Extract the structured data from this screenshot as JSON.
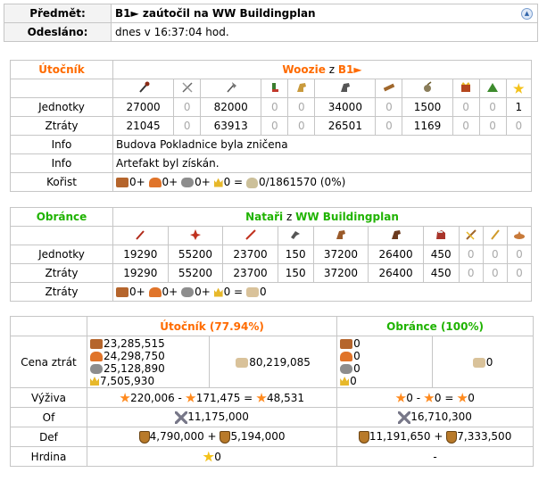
{
  "header": {
    "subject_label": "Předmět:",
    "subject_value": "B1► zaútočil na WW Buildingplan",
    "sent_label": "Odesláno:",
    "sent_value": "dnes v 16:37:04 hod."
  },
  "attacker": {
    "role": "Útočník",
    "player": "Woozie",
    "from_word": "z",
    "village": "B1►",
    "unit_icons": [
      "clubswinger-icon",
      "spearman-icon",
      "axeman-icon",
      "scout-icon",
      "paladin-icon",
      "teutonic-knight-icon",
      "ram-icon",
      "catapult-icon",
      "chief-icon",
      "settler-icon",
      "hero-icon"
    ],
    "units_label": "Jednotky",
    "units": [
      "27000",
      "0",
      "82000",
      "0",
      "0",
      "34000",
      "0",
      "1500",
      "0",
      "0",
      "1"
    ],
    "losses_label": "Ztráty",
    "losses": [
      "21045",
      "0",
      "63913",
      "0",
      "0",
      "26501",
      "0",
      "1169",
      "0",
      "0",
      "0"
    ],
    "info_label": "Info",
    "info1": "Budova Pokladnice byla zničena",
    "info2": "Artefakt byl získán.",
    "bounty_label": "Kořist",
    "bounty": {
      "wood": "0+",
      "clay": "0+",
      "iron": "0+",
      "crop": "0 =",
      "carry": "0/1861570 (0%)"
    }
  },
  "defender": {
    "role": "Obránce",
    "player": "Nataři",
    "from_word": "z",
    "village": "WW Buildingplan",
    "unit_icons": [
      "pikeman-icon",
      "thorned-warrior-icon",
      "guardsman-icon",
      "birds-of-prey-icon",
      "axerider-icon",
      "natarian-knight-icon",
      "warelephant-icon",
      "ballista-icon",
      "natarian-emperor-icon",
      "natar-settler-icon"
    ],
    "units_label": "Jednotky",
    "units": [
      "19290",
      "55200",
      "23700",
      "150",
      "37200",
      "26400",
      "450",
      "0",
      "0",
      "0"
    ],
    "losses_label": "Ztráty",
    "losses": [
      "19290",
      "55200",
      "23700",
      "150",
      "37200",
      "26400",
      "450",
      "0",
      "0",
      "0"
    ],
    "losses2_label": "Ztráty",
    "summary": {
      "wood": "0+",
      "clay": "0+",
      "iron": "0+",
      "crop": "0 =",
      "merchant": "0"
    }
  },
  "summary": {
    "att_header": "Útočník (77.94%)",
    "def_header": "Obránce (100%)",
    "cost_label": "Cena ztrát",
    "att_cost": {
      "wood": "23,285,515",
      "clay": "24,298,750",
      "iron": "25,128,890",
      "crop": "7,505,930",
      "total": "80,219,085"
    },
    "def_cost": {
      "wood": "0",
      "clay": "0",
      "iron": "0",
      "crop": "0",
      "total": "0"
    },
    "food_label": "Výživa",
    "att_food": {
      "a": "220,006 -",
      "b": "171,475 =",
      "c": "48,531"
    },
    "def_food": {
      "a": "0 -",
      "b": "0 =",
      "c": "0"
    },
    "of_label": "Of",
    "att_of": "11,175,000",
    "def_of": "16,710,300",
    "def_label": "Def",
    "att_def": {
      "a": "4,790,000 +",
      "b": "5,194,000"
    },
    "def_def": {
      "a": "11,191,650 +",
      "b": "7,333,500"
    },
    "hero_label": "Hrdina",
    "att_hero": "0",
    "def_hero": "-"
  },
  "colors": {
    "attacker": "#ff6b00",
    "defender": "#1fb300",
    "border": "#c6c6c6",
    "zero": "#aaaaaa"
  }
}
